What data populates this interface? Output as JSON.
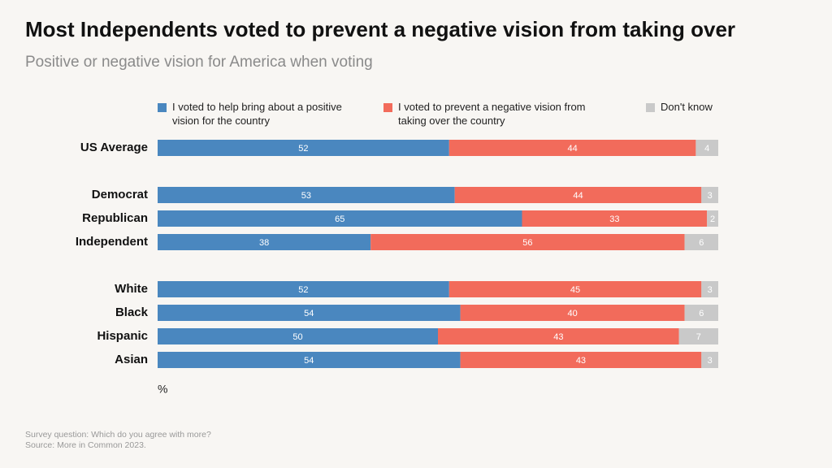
{
  "chart_data": {
    "type": "stacked-bar-horizontal",
    "title": "Most Independents voted to prevent a negative vision from taking over",
    "subtitle": "Positive or negative vision for America when voting",
    "categories": [
      "US Average",
      null,
      "Democrat",
      "Republican",
      "Independent",
      null,
      "White",
      "Black",
      "Hispanic",
      "Asian"
    ],
    "series": [
      {
        "name": "I voted to help bring about a positive vision for the country",
        "color": "#4a87bf",
        "values": [
          52,
          null,
          53,
          65,
          38,
          null,
          52,
          54,
          50,
          54
        ]
      },
      {
        "name": "I voted to prevent a negative vision from taking over the country",
        "color": "#f26b5b",
        "values": [
          44,
          null,
          44,
          33,
          56,
          null,
          45,
          40,
          43,
          43
        ]
      },
      {
        "name": "Don't know",
        "color": "#c9c9c9",
        "values": [
          4,
          null,
          3,
          2,
          6,
          null,
          3,
          6,
          7,
          3
        ]
      }
    ],
    "xlim": [
      0,
      100
    ],
    "xlabel": "%",
    "notes": [
      "Survey question: Which do you agree with more?",
      "Source: More in Common 2023."
    ]
  }
}
